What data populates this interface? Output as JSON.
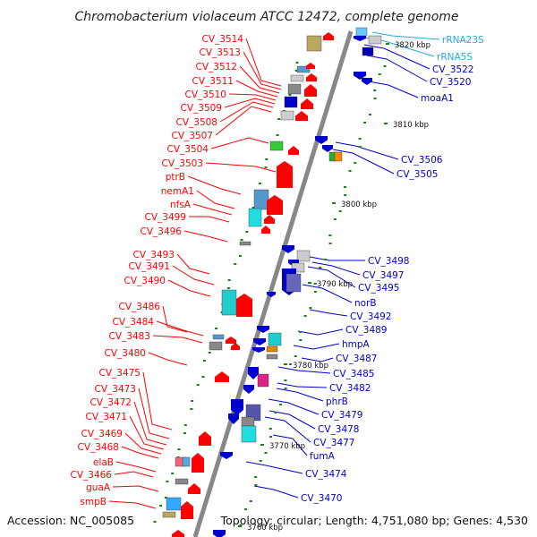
{
  "title": "Chromobacterium violaceum ATCC 12472, complete genome",
  "accession": "Accession: NC_005085",
  "topology": "Topology: circular; Length: 4,751,080 bp; Genes: 4,530",
  "colors": {
    "forward": "#ff0000",
    "reverse": "#0000cc",
    "rna": "#22aadd",
    "backbone": "#888888",
    "tick": "#118811"
  },
  "kbp_markers": [
    "3820 kbp",
    "3810 kbp",
    "3800 kbp",
    "3790 kbp",
    "3780 kbp",
    "3770 kbp",
    "3760 kbp"
  ],
  "left_labels": [
    "CV_3514",
    "CV_3513",
    "CV_3512",
    "CV_3511",
    "CV_3510",
    "CV_3509",
    "CV_3508",
    "CV_3507",
    "CV_3504",
    "CV_3503",
    "ptrB",
    "nemA1",
    "nfsA",
    "CV_3499",
    "CV_3496",
    "CV_3493",
    "CV_3491",
    "CV_3490",
    "CV_3486",
    "CV_3484",
    "CV_3483",
    "CV_3480",
    "CV_3475",
    "CV_3473",
    "CV_3472",
    "CV_3471",
    "CV_3469",
    "CV_3468",
    "elaB",
    "CV_3466",
    "guaA",
    "smpB"
  ],
  "right_labels": [
    "rRNA23S",
    "rRNA5S",
    "CV_3522",
    "CV_3520",
    "moaA1",
    "CV_3506",
    "CV_3505",
    "CV_3498",
    "CV_3497",
    "CV_3495",
    "norB",
    "CV_3492",
    "CV_3489",
    "hmpA",
    "CV_3487",
    "CV_3485",
    "CV_3482",
    "phrB",
    "CV_3479",
    "CV_3478",
    "CV_3477",
    "fumA",
    "CV_3474",
    "CV_3470"
  ]
}
